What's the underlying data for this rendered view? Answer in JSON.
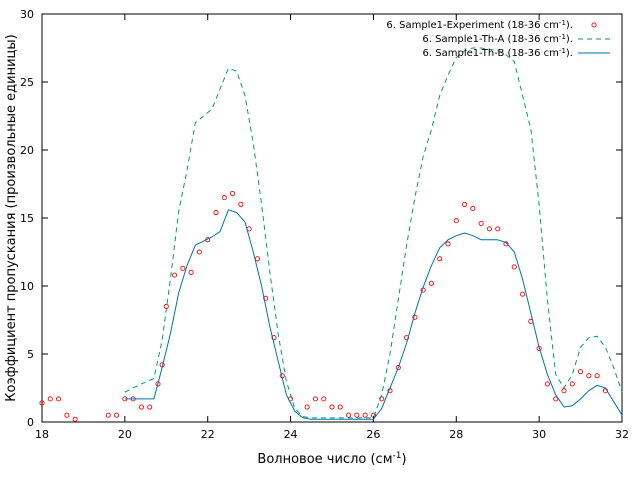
{
  "chart_data": {
    "type": "line",
    "xlabel": "Волновое число (см",
    "xlabel_sup": "-1",
    "xlabel_end": ")",
    "ylabel": "Коэффициент пропускания (произвольные единицы)",
    "xlim": [
      18,
      32
    ],
    "ylim": [
      0,
      30
    ],
    "xticks": [
      18,
      20,
      22,
      24,
      26,
      28,
      30,
      32
    ],
    "yticks": [
      0,
      5,
      10,
      15,
      20,
      25,
      30
    ],
    "grid": false,
    "legend_position": "top-right",
    "series": [
      {
        "name": "6. Sample1-Experiment (18-36 cm",
        "name_sup": "-1",
        "name_end": ").",
        "style": "points",
        "color": "#ff0000",
        "x": [
          18.0,
          18.2,
          18.4,
          18.6,
          18.8,
          19.6,
          19.8,
          20.0,
          20.2,
          20.4,
          20.6,
          20.8,
          20.9,
          21.0,
          21.2,
          21.4,
          21.6,
          21.8,
          22.0,
          22.2,
          22.4,
          22.6,
          22.8,
          23.0,
          23.2,
          23.4,
          23.6,
          23.8,
          24.0,
          24.4,
          24.6,
          24.8,
          25.0,
          25.2,
          25.4,
          25.6,
          25.8,
          26.0,
          26.2,
          26.4,
          26.6,
          26.8,
          27.0,
          27.2,
          27.4,
          27.6,
          27.8,
          28.0,
          28.2,
          28.4,
          28.6,
          28.8,
          29.0,
          29.2,
          29.4,
          29.6,
          29.8,
          30.0,
          30.2,
          30.4,
          30.6,
          30.8,
          31.0,
          31.2,
          31.4,
          31.6
        ],
        "y": [
          1.4,
          1.7,
          1.7,
          0.5,
          0.2,
          0.5,
          0.5,
          1.7,
          1.7,
          1.1,
          1.1,
          2.8,
          4.2,
          8.5,
          10.8,
          11.3,
          11.0,
          12.5,
          13.4,
          15.4,
          16.5,
          16.8,
          16.0,
          14.2,
          12.0,
          9.1,
          6.2,
          3.4,
          1.7,
          1.1,
          1.7,
          1.7,
          1.1,
          1.1,
          0.5,
          0.5,
          0.5,
          0.5,
          1.7,
          2.3,
          4.0,
          6.2,
          7.7,
          9.7,
          10.2,
          12.0,
          13.1,
          14.8,
          16.0,
          15.7,
          14.6,
          14.2,
          14.2,
          13.1,
          11.4,
          9.4,
          7.4,
          5.4,
          2.8,
          1.7,
          2.3,
          2.8,
          3.7,
          3.4,
          3.4,
          2.3
        ]
      },
      {
        "name": "6. Sample1-Th-A (18-36 cm",
        "name_sup": "-1",
        "name_end": ").",
        "style": "dashed",
        "color": "#009e73",
        "x": [
          20.0,
          20.4,
          20.7,
          20.9,
          21.1,
          21.3,
          21.5,
          21.7,
          21.9,
          22.1,
          22.3,
          22.5,
          22.7,
          22.9,
          23.1,
          23.3,
          23.5,
          23.7,
          23.9,
          24.1,
          24.3,
          24.5,
          25.0,
          25.5,
          26.0,
          26.2,
          26.4,
          26.6,
          26.8,
          27.0,
          27.2,
          27.4,
          27.6,
          27.8,
          28.0,
          28.2,
          28.4,
          28.6,
          28.8,
          29.0,
          29.2,
          29.4,
          29.6,
          29.8,
          30.0,
          30.2,
          30.4,
          30.6,
          30.8,
          31.0,
          31.2,
          31.4,
          31.6,
          31.8,
          32.0
        ],
        "y": [
          2.2,
          2.8,
          3.2,
          6.0,
          10.5,
          15.5,
          18.5,
          22.0,
          22.5,
          23.0,
          24.5,
          26.0,
          25.8,
          24.0,
          20.5,
          16.0,
          11.0,
          6.5,
          3.0,
          1.0,
          0.4,
          0.3,
          0.3,
          0.3,
          0.3,
          2.0,
          5.0,
          9.0,
          13.0,
          16.5,
          19.5,
          21.5,
          24.0,
          25.5,
          26.8,
          27.3,
          27.5,
          27.5,
          27.4,
          27.3,
          27.0,
          26.5,
          24.0,
          21.5,
          16.0,
          9.0,
          3.5,
          2.5,
          3.5,
          5.5,
          6.2,
          6.3,
          5.5,
          4.0,
          2.2
        ]
      },
      {
        "name": "6. Sample1-Th-B (18-36 cm",
        "name_sup": "-1",
        "name_end": ").",
        "style": "solid",
        "color": "#0072b2",
        "x": [
          20.0,
          20.4,
          20.7,
          20.9,
          21.1,
          21.3,
          21.5,
          21.7,
          21.9,
          22.1,
          22.3,
          22.5,
          22.7,
          22.9,
          23.1,
          23.3,
          23.5,
          23.7,
          23.9,
          24.1,
          24.3,
          24.5,
          25.0,
          25.5,
          26.0,
          26.2,
          26.4,
          26.6,
          26.8,
          27.0,
          27.2,
          27.4,
          27.6,
          27.8,
          28.0,
          28.2,
          28.4,
          28.6,
          28.8,
          29.0,
          29.2,
          29.4,
          29.6,
          29.8,
          30.0,
          30.2,
          30.4,
          30.6,
          30.8,
          31.0,
          31.2,
          31.4,
          31.6,
          31.8,
          32.0
        ],
        "y": [
          1.7,
          1.7,
          1.7,
          4.0,
          6.5,
          9.5,
          11.5,
          13.0,
          13.3,
          13.6,
          14.0,
          15.6,
          15.4,
          14.7,
          12.5,
          10.0,
          7.0,
          4.5,
          2.0,
          0.8,
          0.3,
          0.2,
          0.2,
          0.2,
          0.2,
          1.0,
          2.5,
          4.0,
          5.8,
          8.0,
          9.9,
          11.5,
          12.8,
          13.4,
          13.7,
          13.9,
          13.7,
          13.4,
          13.4,
          13.4,
          13.2,
          12.5,
          10.5,
          8.0,
          5.5,
          3.5,
          2.0,
          1.1,
          1.2,
          1.7,
          2.3,
          2.7,
          2.5,
          1.5,
          0.5
        ]
      }
    ]
  }
}
